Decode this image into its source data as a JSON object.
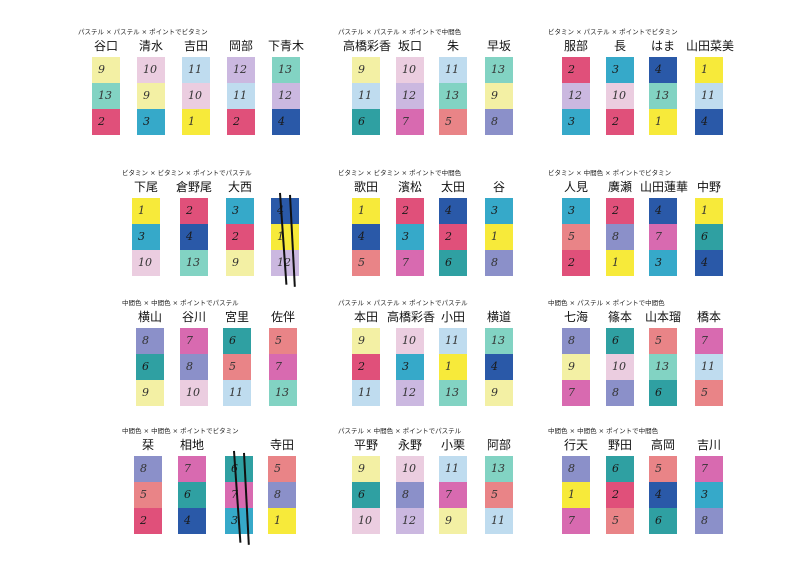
{
  "panels": [
    {
      "title": "パステル × パステル × ポイントでビタミン",
      "columns": [
        {
          "name": "谷口",
          "cells": [
            {
              "n": "9",
              "c": "#f3f0a4"
            },
            {
              "n": "13",
              "c": "#82d3c3"
            },
            {
              "n": "2",
              "c": "#e0507a"
            }
          ]
        },
        {
          "name": "清水",
          "cells": [
            {
              "n": "10",
              "c": "#ebcde0"
            },
            {
              "n": "9",
              "c": "#f3f0a4"
            },
            {
              "n": "3",
              "c": "#36a9c9"
            }
          ]
        },
        {
          "name": "吉田",
          "cells": [
            {
              "n": "11",
              "c": "#bfdcef"
            },
            {
              "n": "10",
              "c": "#ebcde0"
            },
            {
              "n": "1",
              "c": "#f7ea3a"
            }
          ]
        },
        {
          "name": "岡部",
          "cells": [
            {
              "n": "12",
              "c": "#cbb8e0"
            },
            {
              "n": "11",
              "c": "#bfdcef"
            },
            {
              "n": "2",
              "c": "#e0507a"
            }
          ]
        },
        {
          "name": "下青木",
          "cells": [
            {
              "n": "13",
              "c": "#82d3c3"
            },
            {
              "n": "12",
              "c": "#cbb8e0"
            },
            {
              "n": "4",
              "c": "#2a59a8"
            }
          ]
        }
      ]
    },
    {
      "title": "パステル × パステル × ポイントで中間色",
      "columns": [
        {
          "name": "高橋彩香",
          "cells": [
            {
              "n": "9",
              "c": "#f3f0a4"
            },
            {
              "n": "11",
              "c": "#bfdcef"
            },
            {
              "n": "6",
              "c": "#2fa0a2"
            }
          ]
        },
        {
          "name": "坂口",
          "cells": [
            {
              "n": "10",
              "c": "#ebcde0"
            },
            {
              "n": "12",
              "c": "#cbb8e0"
            },
            {
              "n": "7",
              "c": "#d86ab0"
            }
          ]
        },
        {
          "name": "朱",
          "cells": [
            {
              "n": "11",
              "c": "#bfdcef"
            },
            {
              "n": "13",
              "c": "#82d3c3"
            },
            {
              "n": "5",
              "c": "#e98487"
            }
          ]
        },
        {
          "name": "早坂",
          "cells": [
            {
              "n": "13",
              "c": "#82d3c3"
            },
            {
              "n": "9",
              "c": "#f3f0a4"
            },
            {
              "n": "8",
              "c": "#8b90c9"
            }
          ]
        }
      ]
    },
    {
      "title": "ビタミン × パステル × ポイントでビタミン",
      "columns": [
        {
          "name": "服部",
          "cells": [
            {
              "n": "2",
              "c": "#e0507a"
            },
            {
              "n": "12",
              "c": "#cbb8e0"
            },
            {
              "n": "3",
              "c": "#36a9c9"
            }
          ]
        },
        {
          "name": "長",
          "cells": [
            {
              "n": "3",
              "c": "#36a9c9"
            },
            {
              "n": "10",
              "c": "#ebcde0"
            },
            {
              "n": "2",
              "c": "#e0507a"
            }
          ]
        },
        {
          "name": "はま",
          "cells": [
            {
              "n": "4",
              "c": "#2a59a8"
            },
            {
              "n": "13",
              "c": "#82d3c3"
            },
            {
              "n": "1",
              "c": "#f7ea3a"
            }
          ]
        },
        {
          "name": "山田菜美",
          "cells": [
            {
              "n": "1",
              "c": "#f7ea3a"
            },
            {
              "n": "11",
              "c": "#bfdcef"
            },
            {
              "n": "4",
              "c": "#2a59a8"
            }
          ]
        }
      ]
    },
    {
      "title": "ビタミン × ビタミン × ポイントでパステル",
      "columns": [
        {
          "name": "下尾",
          "cells": [
            {
              "n": "1",
              "c": "#f7ea3a"
            },
            {
              "n": "3",
              "c": "#36a9c9"
            },
            {
              "n": "10",
              "c": "#ebcde0"
            }
          ]
        },
        {
          "name": "倉野尾",
          "cells": [
            {
              "n": "2",
              "c": "#e0507a"
            },
            {
              "n": "4",
              "c": "#2a59a8"
            },
            {
              "n": "13",
              "c": "#82d3c3"
            }
          ]
        },
        {
          "name": "大西",
          "cells": [
            {
              "n": "3",
              "c": "#36a9c9"
            },
            {
              "n": "2",
              "c": "#e0507a"
            },
            {
              "n": "9",
              "c": "#f3f0a4"
            }
          ]
        },
        {
          "name": "",
          "cells": [
            {
              "n": "4",
              "c": "#2a59a8"
            },
            {
              "n": "1",
              "c": "#f7ea3a"
            },
            {
              "n": "12",
              "c": "#cbb8e0"
            }
          ]
        }
      ]
    },
    {
      "title": "ビタミン × ビタミン × ポイントで中間色",
      "columns": [
        {
          "name": "歌田",
          "cells": [
            {
              "n": "1",
              "c": "#f7ea3a"
            },
            {
              "n": "4",
              "c": "#2a59a8"
            },
            {
              "n": "5",
              "c": "#e98487"
            }
          ]
        },
        {
          "name": "濱松",
          "cells": [
            {
              "n": "2",
              "c": "#e0507a"
            },
            {
              "n": "3",
              "c": "#36a9c9"
            },
            {
              "n": "7",
              "c": "#d86ab0"
            }
          ]
        },
        {
          "name": "太田",
          "cells": [
            {
              "n": "4",
              "c": "#2a59a8"
            },
            {
              "n": "2",
              "c": "#e0507a"
            },
            {
              "n": "6",
              "c": "#2fa0a2"
            }
          ]
        },
        {
          "name": "谷",
          "cells": [
            {
              "n": "3",
              "c": "#36a9c9"
            },
            {
              "n": "1",
              "c": "#f7ea3a"
            },
            {
              "n": "8",
              "c": "#8b90c9"
            }
          ]
        }
      ]
    },
    {
      "title": "ビタミン × 中間色 × ポイントでビタミン",
      "columns": [
        {
          "name": "人見",
          "cells": [
            {
              "n": "3",
              "c": "#36a9c9"
            },
            {
              "n": "5",
              "c": "#e98487"
            },
            {
              "n": "2",
              "c": "#e0507a"
            }
          ]
        },
        {
          "name": "廣瀬",
          "cells": [
            {
              "n": "2",
              "c": "#e0507a"
            },
            {
              "n": "8",
              "c": "#8b90c9"
            },
            {
              "n": "1",
              "c": "#f7ea3a"
            }
          ]
        },
        {
          "name": "山田蓮華",
          "cells": [
            {
              "n": "4",
              "c": "#2a59a8"
            },
            {
              "n": "7",
              "c": "#d86ab0"
            },
            {
              "n": "3",
              "c": "#36a9c9"
            }
          ]
        },
        {
          "name": "中野",
          "cells": [
            {
              "n": "1",
              "c": "#f7ea3a"
            },
            {
              "n": "6",
              "c": "#2fa0a2"
            },
            {
              "n": "4",
              "c": "#2a59a8"
            }
          ]
        }
      ]
    },
    {
      "title": "中間色 × 中間色 × ポイントでパステル",
      "columns": [
        {
          "name": "横山",
          "cells": [
            {
              "n": "8",
              "c": "#8b90c9"
            },
            {
              "n": "6",
              "c": "#2fa0a2"
            },
            {
              "n": "9",
              "c": "#f3f0a4"
            }
          ]
        },
        {
          "name": "谷川",
          "cells": [
            {
              "n": "7",
              "c": "#d86ab0"
            },
            {
              "n": "8",
              "c": "#8b90c9"
            },
            {
              "n": "10",
              "c": "#ebcde0"
            }
          ]
        },
        {
          "name": "宮里",
          "cells": [
            {
              "n": "6",
              "c": "#2fa0a2"
            },
            {
              "n": "5",
              "c": "#e98487"
            },
            {
              "n": "11",
              "c": "#bfdcef"
            }
          ]
        },
        {
          "name": "佐伴",
          "cells": [
            {
              "n": "5",
              "c": "#e98487"
            },
            {
              "n": "7",
              "c": "#d86ab0"
            },
            {
              "n": "13",
              "c": "#82d3c3"
            }
          ]
        }
      ]
    },
    {
      "title": "パステル × パステル × ポイントでパステル",
      "columns": [
        {
          "name": "本田",
          "cells": [
            {
              "n": "9",
              "c": "#f3f0a4"
            },
            {
              "n": "2",
              "c": "#e0507a"
            },
            {
              "n": "11",
              "c": "#bfdcef"
            }
          ]
        },
        {
          "name": "高橋彩香",
          "cells": [
            {
              "n": "10",
              "c": "#ebcde0"
            },
            {
              "n": "3",
              "c": "#36a9c9"
            },
            {
              "n": "12",
              "c": "#cbb8e0"
            }
          ]
        },
        {
          "name": "小田",
          "cells": [
            {
              "n": "11",
              "c": "#bfdcef"
            },
            {
              "n": "1",
              "c": "#f7ea3a"
            },
            {
              "n": "13",
              "c": "#82d3c3"
            }
          ]
        },
        {
          "name": "横道",
          "cells": [
            {
              "n": "13",
              "c": "#82d3c3"
            },
            {
              "n": "4",
              "c": "#2a59a8"
            },
            {
              "n": "9",
              "c": "#f3f0a4"
            }
          ]
        }
      ]
    },
    {
      "title": "中間色 × パステル × ポイントで中間色",
      "columns": [
        {
          "name": "七海",
          "cells": [
            {
              "n": "8",
              "c": "#8b90c9"
            },
            {
              "n": "9",
              "c": "#f3f0a4"
            },
            {
              "n": "7",
              "c": "#d86ab0"
            }
          ]
        },
        {
          "name": "篠本",
          "cells": [
            {
              "n": "6",
              "c": "#2fa0a2"
            },
            {
              "n": "10",
              "c": "#ebcde0"
            },
            {
              "n": "8",
              "c": "#8b90c9"
            }
          ]
        },
        {
          "name": "山本瑠",
          "cells": [
            {
              "n": "5",
              "c": "#e98487"
            },
            {
              "n": "13",
              "c": "#82d3c3"
            },
            {
              "n": "6",
              "c": "#2fa0a2"
            }
          ]
        },
        {
          "name": "橋本",
          "cells": [
            {
              "n": "7",
              "c": "#d86ab0"
            },
            {
              "n": "11",
              "c": "#bfdcef"
            },
            {
              "n": "5",
              "c": "#e98487"
            }
          ]
        }
      ]
    },
    {
      "title": "中間色 × 中間色 × ポイントでビタミン",
      "columns": [
        {
          "name": "栞",
          "cells": [
            {
              "n": "8",
              "c": "#8b90c9"
            },
            {
              "n": "5",
              "c": "#e98487"
            },
            {
              "n": "2",
              "c": "#e0507a"
            }
          ]
        },
        {
          "name": "相地",
          "cells": [
            {
              "n": "7",
              "c": "#d86ab0"
            },
            {
              "n": "6",
              "c": "#2fa0a2"
            },
            {
              "n": "4",
              "c": "#2a59a8"
            }
          ]
        },
        {
          "name": "",
          "cells": [
            {
              "n": "6",
              "c": "#2fa0a2"
            },
            {
              "n": "7",
              "c": "#d86ab0"
            },
            {
              "n": "3",
              "c": "#36a9c9"
            }
          ]
        },
        {
          "name": "寺田",
          "cells": [
            {
              "n": "5",
              "c": "#e98487"
            },
            {
              "n": "8",
              "c": "#8b90c9"
            },
            {
              "n": "1",
              "c": "#f7ea3a"
            }
          ]
        }
      ]
    },
    {
      "title": "パステル × 中間色 × ポイントでパステル",
      "columns": [
        {
          "name": "平野",
          "cells": [
            {
              "n": "9",
              "c": "#f3f0a4"
            },
            {
              "n": "6",
              "c": "#2fa0a2"
            },
            {
              "n": "10",
              "c": "#ebcde0"
            }
          ]
        },
        {
          "name": "永野",
          "cells": [
            {
              "n": "10",
              "c": "#ebcde0"
            },
            {
              "n": "8",
              "c": "#8b90c9"
            },
            {
              "n": "12",
              "c": "#cbb8e0"
            }
          ]
        },
        {
          "name": "小栗",
          "cells": [
            {
              "n": "11",
              "c": "#bfdcef"
            },
            {
              "n": "7",
              "c": "#d86ab0"
            },
            {
              "n": "9",
              "c": "#f3f0a4"
            }
          ]
        },
        {
          "name": "阿部",
          "cells": [
            {
              "n": "13",
              "c": "#82d3c3"
            },
            {
              "n": "5",
              "c": "#e98487"
            },
            {
              "n": "11",
              "c": "#bfdcef"
            }
          ]
        }
      ]
    },
    {
      "title": "中間色 × 中間色 × ポイントで中間色",
      "columns": [
        {
          "name": "行天",
          "cells": [
            {
              "n": "8",
              "c": "#8b90c9"
            },
            {
              "n": "1",
              "c": "#f7ea3a"
            },
            {
              "n": "7",
              "c": "#d86ab0"
            }
          ]
        },
        {
          "name": "野田",
          "cells": [
            {
              "n": "6",
              "c": "#2fa0a2"
            },
            {
              "n": "2",
              "c": "#e0507a"
            },
            {
              "n": "5",
              "c": "#e98487"
            }
          ]
        },
        {
          "name": "高岡",
          "cells": [
            {
              "n": "5",
              "c": "#e98487"
            },
            {
              "n": "4",
              "c": "#2a59a8"
            },
            {
              "n": "6",
              "c": "#2fa0a2"
            }
          ]
        },
        {
          "name": "吉川",
          "cells": [
            {
              "n": "7",
              "c": "#d86ab0"
            },
            {
              "n": "3",
              "c": "#36a9c9"
            },
            {
              "n": "8",
              "c": "#8b90c9"
            }
          ]
        }
      ]
    }
  ]
}
